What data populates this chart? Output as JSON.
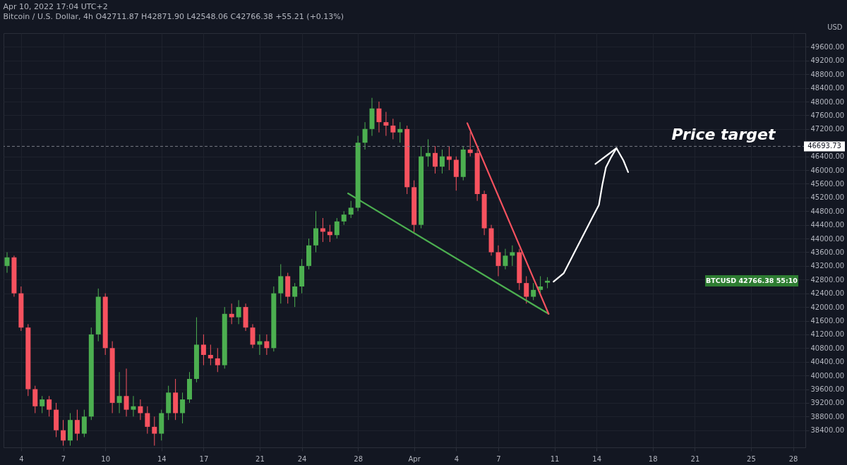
{
  "chart_data": {
    "type": "candlestick",
    "title": "Apr 10, 2022 17:04 UTC+2",
    "subtitle": "Bitcoin / U.S. Dollar, 4h  O42711.87 H42871.90 L42548.06 C42766.38 +55.21 (+0.13%)",
    "ylabel": "USD",
    "x": [
      "2022-03-03T00:00",
      "2022-03-03T12:00",
      "2022-03-04T00:00",
      "2022-03-04T12:00",
      "2022-03-05T00:00",
      "2022-03-05T12:00",
      "2022-03-06T00:00",
      "2022-03-06T12:00",
      "2022-03-07T00:00",
      "2022-03-07T12:00",
      "2022-03-08T00:00",
      "2022-03-08T12:00",
      "2022-03-09T00:00",
      "2022-03-09T12:00",
      "2022-03-10T00:00",
      "2022-03-10T12:00",
      "2022-03-11T00:00",
      "2022-03-11T12:00",
      "2022-03-12T00:00",
      "2022-03-12T12:00",
      "2022-03-13T00:00",
      "2022-03-13T12:00",
      "2022-03-14T00:00",
      "2022-03-14T12:00",
      "2022-03-15T00:00",
      "2022-03-15T12:00",
      "2022-03-16T00:00",
      "2022-03-16T12:00",
      "2022-03-17T00:00",
      "2022-03-17T12:00",
      "2022-03-18T00:00",
      "2022-03-18T12:00",
      "2022-03-19T00:00",
      "2022-03-19T12:00",
      "2022-03-20T00:00",
      "2022-03-20T12:00",
      "2022-03-21T00:00",
      "2022-03-21T12:00",
      "2022-03-22T00:00",
      "2022-03-22T12:00",
      "2022-03-23T00:00",
      "2022-03-23T12:00",
      "2022-03-24T00:00",
      "2022-03-24T12:00",
      "2022-03-25T00:00",
      "2022-03-25T12:00",
      "2022-03-26T00:00",
      "2022-03-26T12:00",
      "2022-03-27T00:00",
      "2022-03-27T12:00",
      "2022-03-28T00:00",
      "2022-03-28T12:00",
      "2022-03-29T00:00",
      "2022-03-29T12:00",
      "2022-03-30T00:00",
      "2022-03-30T12:00",
      "2022-03-31T00:00",
      "2022-03-31T12:00",
      "2022-04-01T00:00",
      "2022-04-01T12:00",
      "2022-04-02T00:00",
      "2022-04-02T12:00",
      "2022-04-03T00:00",
      "2022-04-03T12:00",
      "2022-04-04T00:00",
      "2022-04-04T12:00",
      "2022-04-05T00:00",
      "2022-04-05T12:00",
      "2022-04-06T00:00",
      "2022-04-06T12:00",
      "2022-04-07T00:00",
      "2022-04-07T12:00",
      "2022-04-08T00:00",
      "2022-04-08T12:00",
      "2022-04-09T00:00",
      "2022-04-09T12:00",
      "2022-04-10T00:00",
      "2022-04-10T12:00"
    ],
    "ohlc": [
      [
        43200,
        43600,
        43000,
        43450
      ],
      [
        43450,
        43500,
        42300,
        42400
      ],
      [
        42400,
        42600,
        41300,
        41400
      ],
      [
        41400,
        41500,
        39400,
        39600
      ],
      [
        39600,
        39700,
        38900,
        39100
      ],
      [
        39100,
        39400,
        38900,
        39300
      ],
      [
        39300,
        39400,
        38800,
        39000
      ],
      [
        39000,
        39200,
        38200,
        38400
      ],
      [
        38400,
        38700,
        37950,
        38100
      ],
      [
        38100,
        38900,
        37950,
        38700
      ],
      [
        38700,
        39000,
        38100,
        38300
      ],
      [
        38300,
        39000,
        38200,
        38800
      ],
      [
        38800,
        41400,
        38700,
        41200
      ],
      [
        41200,
        42540,
        41000,
        42300
      ],
      [
        42300,
        42400,
        40600,
        40800
      ],
      [
        40800,
        41000,
        38900,
        39200
      ],
      [
        39200,
        40100,
        38900,
        39400
      ],
      [
        39400,
        40200,
        38800,
        39000
      ],
      [
        39000,
        39400,
        38800,
        39100
      ],
      [
        39100,
        39300,
        38700,
        38900
      ],
      [
        38900,
        39100,
        38300,
        38500
      ],
      [
        38500,
        38800,
        37950,
        38300
      ],
      [
        38300,
        39000,
        38100,
        38900
      ],
      [
        38900,
        39700,
        38700,
        39500
      ],
      [
        39500,
        39900,
        38700,
        38900
      ],
      [
        38900,
        39500,
        38600,
        39300
      ],
      [
        39300,
        40100,
        39200,
        39900
      ],
      [
        39900,
        41700,
        39800,
        40900
      ],
      [
        40900,
        41200,
        40300,
        40600
      ],
      [
        40600,
        40900,
        40300,
        40500
      ],
      [
        40500,
        40800,
        40100,
        40300
      ],
      [
        40300,
        42000,
        40200,
        41800
      ],
      [
        41800,
        42100,
        41500,
        41700
      ],
      [
        41700,
        42200,
        41500,
        42000
      ],
      [
        42000,
        42100,
        41300,
        41400
      ],
      [
        41400,
        41500,
        40800,
        40900
      ],
      [
        40900,
        41200,
        40600,
        41000
      ],
      [
        41000,
        41200,
        40600,
        40800
      ],
      [
        40800,
        42600,
        40700,
        42400
      ],
      [
        42400,
        43250,
        42100,
        42900
      ],
      [
        42900,
        43000,
        42100,
        42300
      ],
      [
        42300,
        42700,
        42000,
        42600
      ],
      [
        42600,
        43400,
        42400,
        43200
      ],
      [
        43200,
        44000,
        43100,
        43800
      ],
      [
        43800,
        44800,
        43600,
        44300
      ],
      [
        44300,
        44600,
        43900,
        44200
      ],
      [
        44200,
        44400,
        43900,
        44100
      ],
      [
        44100,
        44600,
        44000,
        44500
      ],
      [
        44500,
        44800,
        44400,
        44700
      ],
      [
        44700,
        45100,
        44600,
        44900
      ],
      [
        44900,
        47000,
        44800,
        46800
      ],
      [
        46800,
        47400,
        46600,
        47200
      ],
      [
        47200,
        48110,
        47000,
        47800
      ],
      [
        47800,
        48000,
        47100,
        47400
      ],
      [
        47400,
        47700,
        47000,
        47300
      ],
      [
        47300,
        47500,
        46900,
        47100
      ],
      [
        47100,
        47400,
        46800,
        47200
      ],
      [
        47200,
        47300,
        45300,
        45500
      ],
      [
        45500,
        45700,
        44190,
        44400
      ],
      [
        44400,
        46700,
        44300,
        46400
      ],
      [
        46400,
        46900,
        46100,
        46500
      ],
      [
        46500,
        46700,
        45900,
        46100
      ],
      [
        46100,
        46600,
        45900,
        46400
      ],
      [
        46400,
        46700,
        46000,
        46300
      ],
      [
        46300,
        46400,
        45400,
        45800
      ],
      [
        45800,
        46700,
        45700,
        46600
      ],
      [
        46600,
        47110,
        46400,
        46500
      ],
      [
        46500,
        46600,
        45100,
        45300
      ],
      [
        45300,
        45400,
        44100,
        44300
      ],
      [
        44300,
        44400,
        43500,
        43600
      ],
      [
        43600,
        43800,
        42900,
        43200
      ],
      [
        43200,
        43700,
        43100,
        43500
      ],
      [
        43500,
        43800,
        43200,
        43600
      ],
      [
        43600,
        43700,
        42500,
        42700
      ],
      [
        42700,
        42900,
        42100,
        42300
      ],
      [
        42300,
        42700,
        42200,
        42500
      ],
      [
        42500,
        42900,
        42400,
        42600
      ],
      [
        42711.87,
        42871.9,
        42548.06,
        42766.38
      ]
    ],
    "colors": [
      "#4caf50",
      "#f7525f",
      "#f7525f",
      "#f7525f",
      "#f7525f",
      "#4caf50",
      "#f7525f",
      "#f7525f",
      "#f7525f",
      "#4caf50",
      "#f7525f",
      "#4caf50",
      "#4caf50",
      "#4caf50",
      "#f7525f",
      "#f7525f",
      "#4caf50",
      "#f7525f",
      "#4caf50",
      "#f7525f",
      "#f7525f",
      "#f7525f",
      "#4caf50",
      "#4caf50",
      "#f7525f",
      "#4caf50",
      "#4caf50",
      "#4caf50",
      "#f7525f",
      "#f7525f",
      "#f7525f",
      "#4caf50",
      "#f7525f",
      "#4caf50",
      "#f7525f",
      "#f7525f",
      "#4caf50",
      "#f7525f",
      "#4caf50",
      "#4caf50",
      "#f7525f",
      "#4caf50",
      "#4caf50",
      "#4caf50",
      "#4caf50",
      "#f7525f",
      "#f7525f",
      "#4caf50",
      "#4caf50",
      "#4caf50",
      "#4caf50",
      "#4caf50",
      "#4caf50",
      "#f7525f",
      "#f7525f",
      "#f7525f",
      "#4caf50",
      "#f7525f",
      "#f7525f",
      "#4caf50",
      "#4caf50",
      "#f7525f",
      "#4caf50",
      "#f7525f",
      "#f7525f",
      "#4caf50",
      "#f7525f",
      "#f7525f",
      "#f7525f",
      "#f7525f",
      "#f7525f",
      "#4caf50",
      "#4caf50",
      "#f7525f",
      "#f7525f",
      "#4caf50",
      "#4caf50",
      "#4caf50"
    ],
    "series": [
      {
        "type": "line",
        "color": "#4caf50",
        "x": [
          "2022-03-27T07:00",
          "2022-04-10T14:00"
        ],
        "values": [
          45320,
          41800
        ]
      },
      {
        "type": "line",
        "color": "#f7525f",
        "x": [
          "2022-04-04T19:00",
          "2022-04-10T14:00"
        ],
        "values": [
          47370,
          41800
        ]
      },
      {
        "type": "line",
        "color": "#ffffff",
        "x": [
          "2022-04-10T22:30",
          "2022-04-11T16:00",
          "2022-04-12T07:00",
          "2022-04-12T22:00",
          "2022-04-13T10:00",
          "2022-04-13T16:00",
          "2022-04-14T04:00",
          "2022-04-14T10:00",
          "2022-04-14T16:00",
          "2022-04-15T01:00",
          "2022-04-15T10:00",
          "2022-04-15T22:00",
          "2022-04-16T06:00"
        ],
        "values": [
          42740,
          42990,
          43490,
          43990,
          44390,
          44590,
          44980,
          45580,
          46080,
          46380,
          46640,
          46280,
          45940
        ]
      },
      {
        "type": "line",
        "color": "#ffffff",
        "x": [
          "2022-04-13T22:00",
          "2022-04-15T10:00"
        ],
        "values": [
          46180,
          46640
        ]
      }
    ],
    "ref_lines": [
      {
        "axis": "y",
        "value": 46693.73,
        "label": "46693.73",
        "line_style": "dashed",
        "color": "#787b86"
      }
    ],
    "annotations": [
      "Price target",
      "BTCUSD 42766.38 55:10"
    ],
    "xlim": [
      "2022-03-03T00:00",
      "2022-04-28T15:00"
    ],
    "xticks": [
      {
        "value": "2022-03-04T00:00",
        "label": "4"
      },
      {
        "value": "2022-03-07T00:00",
        "label": "7"
      },
      {
        "value": "2022-03-10T00:00",
        "label": "10"
      },
      {
        "value": "2022-03-14T00:00",
        "label": "14"
      },
      {
        "value": "2022-03-17T00:00",
        "label": "17"
      },
      {
        "value": "2022-03-21T00:00",
        "label": "21"
      },
      {
        "value": "2022-03-24T00:00",
        "label": "24"
      },
      {
        "value": "2022-03-28T00:00",
        "label": "28"
      },
      {
        "value": "2022-04-01T00:00",
        "label": "Apr"
      },
      {
        "value": "2022-04-04T00:00",
        "label": "4"
      },
      {
        "value": "2022-04-07T00:00",
        "label": "7"
      },
      {
        "value": "2022-04-11T00:00",
        "label": "11"
      },
      {
        "value": "2022-04-14T00:00",
        "label": "14"
      },
      {
        "value": "2022-04-18T00:00",
        "label": "18"
      },
      {
        "value": "2022-04-21T00:00",
        "label": "21"
      },
      {
        "value": "2022-04-25T00:00",
        "label": "25"
      },
      {
        "value": "2022-04-28T00:00",
        "label": "28"
      }
    ],
    "ylim": [
      37900,
      50000
    ],
    "yticks": [
      {
        "value": 38400,
        "label": "38400.00"
      },
      {
        "value": 38800,
        "label": "38800.00"
      },
      {
        "value": 39200,
        "label": "39200.00"
      },
      {
        "value": 39600,
        "label": "39600.00"
      },
      {
        "value": 40000,
        "label": "40000.00"
      },
      {
        "value": 40400,
        "label": "40400.00"
      },
      {
        "value": 40800,
        "label": "40800.00"
      },
      {
        "value": 41200,
        "label": "41200.00"
      },
      {
        "value": 41600,
        "label": "41600.00"
      },
      {
        "value": 42000,
        "label": "42000.00"
      },
      {
        "value": 42400,
        "label": "42400.00"
      },
      {
        "value": 42800,
        "label": "42800.00"
      },
      {
        "value": 43200,
        "label": "43200.00"
      },
      {
        "value": 43600,
        "label": "43600.00"
      },
      {
        "value": 44000,
        "label": "44000.00"
      },
      {
        "value": 44400,
        "label": "44400.00"
      },
      {
        "value": 44800,
        "label": "44800.00"
      },
      {
        "value": 45200,
        "label": "45200.00"
      },
      {
        "value": 45600,
        "label": "45600.00"
      },
      {
        "value": 46000,
        "label": "46000.00"
      },
      {
        "value": 46400,
        "label": "46400.00"
      },
      {
        "value": 47200,
        "label": "47200.00"
      },
      {
        "value": 47600,
        "label": "47600.00"
      },
      {
        "value": 48000,
        "label": "48000.00"
      },
      {
        "value": 48400,
        "label": "48400.00"
      },
      {
        "value": 48800,
        "label": "48800.00"
      },
      {
        "value": 49200,
        "label": "49200.00"
      },
      {
        "value": 49600,
        "label": "49600.00"
      }
    ],
    "grid": true
  }
}
